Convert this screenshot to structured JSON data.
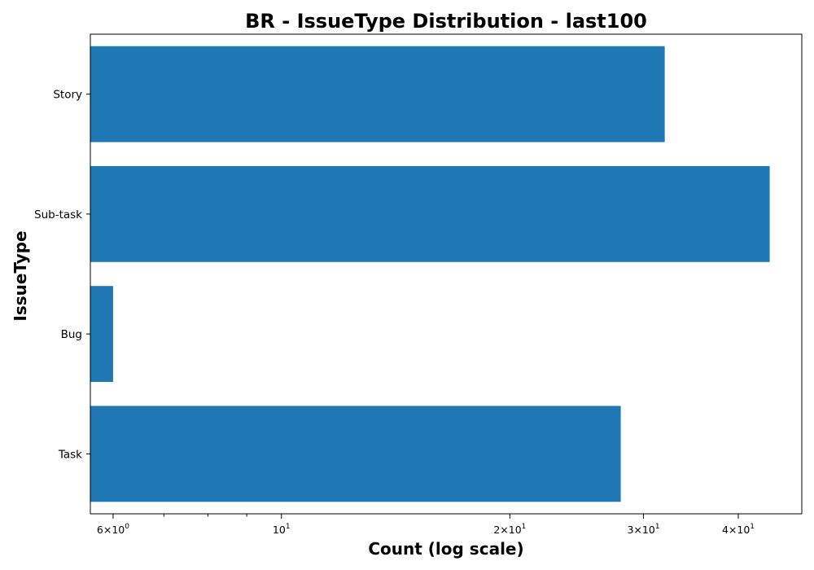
{
  "chart_data": {
    "type": "bar",
    "orientation": "horizontal",
    "title": "BR - IssueType Distribution - last100",
    "xlabel": "Count (log scale)",
    "ylabel": "IssueType",
    "x_scale": "log",
    "xlim": [
      5.6,
      48.5
    ],
    "categories": [
      "Story",
      "Sub-task",
      "Bug",
      "Task"
    ],
    "values": [
      32,
      44,
      6,
      28
    ],
    "bar_color": "#1f77b4",
    "x_ticks": [
      {
        "value": 6,
        "label": "6×10",
        "exp": "0"
      },
      {
        "value": 10,
        "label": "10",
        "exp": "1"
      },
      {
        "value": 20,
        "label": "2×10",
        "exp": "1"
      },
      {
        "value": 30,
        "label": "3×10",
        "exp": "1"
      },
      {
        "value": 40,
        "label": "4×10",
        "exp": "1"
      }
    ],
    "x_minor_ticks": [
      7,
      8,
      9
    ],
    "grid": false,
    "legend": "none"
  }
}
